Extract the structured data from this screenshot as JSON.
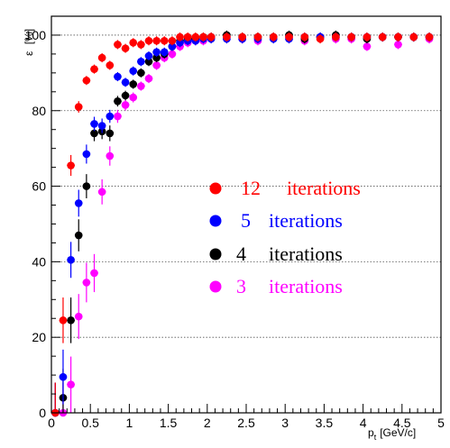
{
  "chart_data": {
    "type": "scatter",
    "xlabel_main": "p",
    "xlabel_sub": "t",
    "xlabel_unit": "[GeV/c]",
    "ylabel_main": "ε",
    "ylabel_unit": "[%]",
    "xlim": [
      0,
      5
    ],
    "ylim": [
      0,
      105
    ],
    "xticks": [
      0,
      0.5,
      1,
      1.5,
      2,
      2.5,
      3,
      3.5,
      4,
      4.5,
      5
    ],
    "xtick_labels": [
      "0",
      "0.5",
      "1",
      "1.5",
      "2",
      "2.5",
      "3",
      "3.5",
      "4",
      "4.5",
      "5"
    ],
    "yticks": [
      0,
      20,
      40,
      60,
      80,
      100
    ],
    "ytick_labels": [
      "0",
      "20",
      "40",
      "60",
      "80",
      "100"
    ],
    "grid_y": true,
    "grid_x": false,
    "legend_position": "center-right",
    "series": [
      {
        "name": "12 iterations",
        "label_num": "12",
        "label_word": "iterations",
        "color": "#ff0000",
        "x": [
          0.05,
          0.15,
          0.25,
          0.35,
          0.45,
          0.55,
          0.65,
          0.75,
          0.85,
          0.95,
          1.05,
          1.15,
          1.25,
          1.35,
          1.45,
          1.55,
          1.65,
          1.75,
          1.85,
          1.95,
          2.05,
          2.25,
          2.45,
          2.65,
          2.85,
          3.05,
          3.25,
          3.45,
          3.65,
          3.85,
          4.05,
          4.25,
          4.45,
          4.65,
          4.85
        ],
        "y": [
          0,
          24.5,
          65.5,
          81,
          88,
          91,
          94,
          92,
          97.5,
          96.5,
          98,
          97.5,
          98.5,
          98.5,
          98.5,
          98.5,
          99.5,
          99.5,
          99.5,
          99.5,
          99.5,
          99.5,
          99.5,
          99.5,
          99.5,
          99.5,
          99.5,
          99,
          99.5,
          99.5,
          99.5,
          99.5,
          99.5,
          99.5,
          99.5
        ]
      },
      {
        "name": "5 iterations",
        "label_num": "5",
        "label_word": "iterations",
        "color": "#0000ff",
        "x": [
          0.05,
          0.15,
          0.25,
          0.35,
          0.45,
          0.55,
          0.65,
          0.75,
          0.85,
          0.95,
          1.05,
          1.15,
          1.25,
          1.35,
          1.45,
          1.55,
          1.65,
          1.75,
          1.85,
          1.95,
          2.05,
          2.25,
          2.45,
          2.65,
          2.85,
          3.05,
          3.25,
          3.45,
          3.65,
          3.85,
          4.05,
          4.25,
          4.45,
          4.65,
          4.85
        ],
        "y": [
          0,
          9.5,
          40.5,
          55.5,
          68.5,
          76.5,
          76,
          78.5,
          89,
          87.5,
          90.5,
          93,
          94.5,
          95.5,
          95.5,
          97,
          98,
          98.5,
          98.5,
          99,
          99,
          99,
          99,
          99,
          99,
          99,
          99.5,
          99.5,
          99.5,
          99.5,
          99.5,
          99.5,
          99.5,
          99.5,
          99.5
        ]
      },
      {
        "name": "4 iterations",
        "label_num": "4",
        "label_word": "iterations",
        "color": "#000000",
        "x": [
          0.05,
          0.15,
          0.25,
          0.35,
          0.45,
          0.55,
          0.65,
          0.75,
          0.85,
          0.95,
          1.05,
          1.15,
          1.25,
          1.35,
          1.45,
          1.55,
          1.65,
          1.75,
          1.85,
          1.95,
          2.05,
          2.25,
          2.45,
          2.65,
          2.85,
          3.05,
          3.25,
          3.45,
          3.65,
          3.85,
          4.05,
          4.25,
          4.45,
          4.65,
          4.85
        ],
        "y": [
          0,
          4,
          24.5,
          47,
          60,
          74,
          74.5,
          74,
          82.5,
          84,
          87,
          90,
          93,
          94,
          95,
          97,
          98.5,
          99,
          99,
          99.5,
          99.5,
          100,
          99.5,
          99.5,
          99.5,
          100,
          99,
          99.5,
          100,
          99.5,
          99,
          99.5,
          99.5,
          99.5,
          99.5
        ]
      },
      {
        "name": "3 iterations",
        "label_num": "3",
        "label_word": "iterations",
        "color": "#ff00ff",
        "x": [
          0.05,
          0.15,
          0.25,
          0.35,
          0.45,
          0.55,
          0.65,
          0.75,
          0.85,
          0.95,
          1.05,
          1.15,
          1.25,
          1.35,
          1.45,
          1.55,
          1.65,
          1.75,
          1.85,
          1.95,
          2.05,
          2.25,
          2.45,
          2.65,
          2.85,
          3.05,
          3.25,
          3.45,
          3.65,
          3.85,
          4.05,
          4.25,
          4.45,
          4.65,
          4.85
        ],
        "y": [
          0,
          0,
          7.5,
          25.5,
          34.5,
          37,
          58.5,
          68,
          78.5,
          81.5,
          83.5,
          86.5,
          88.5,
          92,
          94,
          95,
          97,
          98,
          98.5,
          98.5,
          99.5,
          99.5,
          99,
          98.5,
          99.5,
          99.5,
          98.5,
          99.5,
          99,
          99,
          97,
          99.5,
          97.5,
          99.5,
          99
        ]
      }
    ]
  }
}
